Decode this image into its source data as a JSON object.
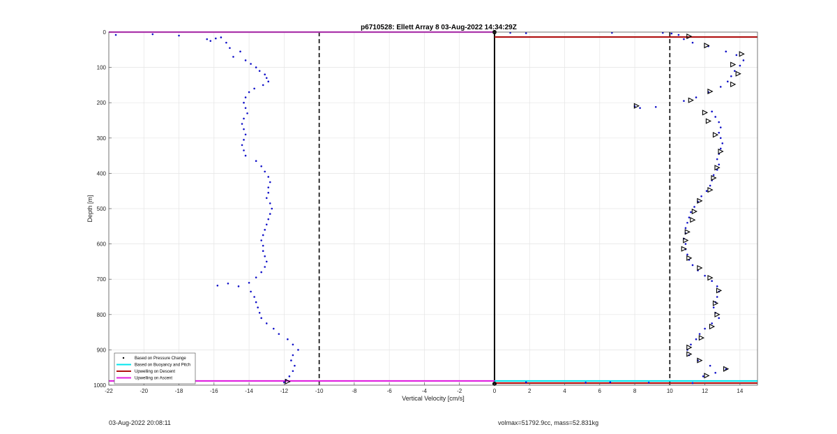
{
  "footer": {
    "left_text": "03-Aug-2022 20:08:11",
    "right_text": "volmax=51792.9cc, mass=52.831kg"
  },
  "chart_data": {
    "type": "scatter",
    "title": "p6710528: Ellett Array 8 03-Aug-2022 14:34:29Z",
    "xlabel": "Vertical Velocity [cm/s]",
    "ylabel": "Depth [m]",
    "xlim": [
      -22,
      15
    ],
    "ylim": [
      0,
      1000
    ],
    "y_reversed": true,
    "grid": true,
    "x_ticks": [
      -22,
      -20,
      -18,
      -16,
      -14,
      -12,
      -10,
      -8,
      -6,
      -4,
      -2,
      0,
      2,
      4,
      6,
      8,
      10,
      12,
      14
    ],
    "y_ticks": [
      0,
      100,
      200,
      300,
      400,
      500,
      600,
      700,
      800,
      900,
      1000
    ],
    "legend": {
      "placement": "bottom-left",
      "entries": [
        {
          "label": "Based on Pressure Change",
          "color": "#000000",
          "style": "dot"
        },
        {
          "label": "Based on Buoyancy and Pitch",
          "color": "#00e5ee",
          "style": "line"
        },
        {
          "label": "Upwelling on Descent",
          "color": "#b01010",
          "style": "line"
        },
        {
          "label": "Upwelling on Ascent",
          "color": "#e020e0",
          "style": "line"
        }
      ]
    },
    "reference_lines": [
      {
        "x": -10,
        "style": "dashed",
        "color": "#000000"
      },
      {
        "x": 0,
        "style": "solid",
        "color": "#000000"
      },
      {
        "x": 10,
        "style": "dashed",
        "color": "#000000"
      }
    ],
    "series": [
      {
        "label": "Based on Pressure Change",
        "marker": "dot",
        "color": "#1010c8",
        "points": [
          [
            -21.6,
            8
          ],
          [
            -19.5,
            6
          ],
          [
            -18,
            10
          ],
          [
            -16.4,
            20
          ],
          [
            -16.2,
            25
          ],
          [
            -15.9,
            18
          ],
          [
            -15.6,
            15
          ],
          [
            -15.3,
            30
          ],
          [
            -15.1,
            45
          ],
          [
            -14.5,
            55
          ],
          [
            -14.9,
            70
          ],
          [
            -14.2,
            80
          ],
          [
            -13.9,
            90
          ],
          [
            -13.6,
            100
          ],
          [
            -13.4,
            110
          ],
          [
            -13.1,
            120
          ],
          [
            -13.0,
            130
          ],
          [
            -12.9,
            140
          ],
          [
            -13.2,
            150
          ],
          [
            -13.7,
            160
          ],
          [
            -14.0,
            170
          ],
          [
            -14.2,
            185
          ],
          [
            -14.3,
            200
          ],
          [
            -14.2,
            215
          ],
          [
            -14.1,
            230
          ],
          [
            -14.3,
            245
          ],
          [
            -14.4,
            260
          ],
          [
            -14.3,
            275
          ],
          [
            -14.2,
            290
          ],
          [
            -14.3,
            305
          ],
          [
            -14.4,
            320
          ],
          [
            -14.3,
            335
          ],
          [
            -14.2,
            350
          ],
          [
            -13.6,
            365
          ],
          [
            -13.3,
            380
          ],
          [
            -13.1,
            395
          ],
          [
            -12.9,
            410
          ],
          [
            -12.8,
            425
          ],
          [
            -12.9,
            440
          ],
          [
            -12.9,
            455
          ],
          [
            -13.0,
            470
          ],
          [
            -12.8,
            485
          ],
          [
            -12.7,
            500
          ],
          [
            -12.8,
            515
          ],
          [
            -12.9,
            530
          ],
          [
            -13.0,
            545
          ],
          [
            -13.1,
            560
          ],
          [
            -13.2,
            575
          ],
          [
            -13.3,
            590
          ],
          [
            -13.2,
            605
          ],
          [
            -13.2,
            620
          ],
          [
            -13.1,
            635
          ],
          [
            -13.0,
            650
          ],
          [
            -13.1,
            665
          ],
          [
            -13.3,
            680
          ],
          [
            -13.6,
            695
          ],
          [
            -14.0,
            710
          ],
          [
            -14.6,
            720
          ],
          [
            -13.9,
            735
          ],
          [
            -13.7,
            750
          ],
          [
            -13.6,
            765
          ],
          [
            -13.5,
            780
          ],
          [
            -13.4,
            795
          ],
          [
            -13.3,
            810
          ],
          [
            -13.0,
            825
          ],
          [
            -12.6,
            840
          ],
          [
            -12.3,
            855
          ],
          [
            -11.8,
            870
          ],
          [
            -11.5,
            885
          ],
          [
            -11.2,
            900
          ],
          [
            -11.5,
            915
          ],
          [
            -11.6,
            930
          ],
          [
            -11.4,
            945
          ],
          [
            -11.5,
            960
          ],
          [
            -11.7,
            975
          ],
          [
            -11.9,
            985
          ],
          [
            -12.0,
            992
          ],
          [
            -15.8,
            718
          ],
          [
            -15.2,
            712
          ],
          [
            10.5,
            8
          ],
          [
            10.8,
            20
          ],
          [
            11.3,
            30
          ],
          [
            12.2,
            40
          ],
          [
            13.2,
            55
          ],
          [
            13.8,
            65
          ],
          [
            14.2,
            80
          ],
          [
            14.0,
            95
          ],
          [
            13.7,
            110
          ],
          [
            13.5,
            125
          ],
          [
            13.3,
            140
          ],
          [
            12.9,
            155
          ],
          [
            12.2,
            170
          ],
          [
            11.5,
            185
          ],
          [
            10.8,
            195
          ],
          [
            8.0,
            210
          ],
          [
            8.3,
            215
          ],
          [
            9.2,
            212
          ],
          [
            12.4,
            225
          ],
          [
            12.6,
            240
          ],
          [
            12.8,
            255
          ],
          [
            12.9,
            270
          ],
          [
            12.8,
            285
          ],
          [
            12.9,
            300
          ],
          [
            13.0,
            315
          ],
          [
            12.9,
            330
          ],
          [
            12.8,
            345
          ],
          [
            12.7,
            360
          ],
          [
            12.8,
            375
          ],
          [
            12.7,
            390
          ],
          [
            12.5,
            405
          ],
          [
            12.4,
            420
          ],
          [
            12.3,
            435
          ],
          [
            12.1,
            450
          ],
          [
            11.8,
            465
          ],
          [
            11.6,
            480
          ],
          [
            11.4,
            495
          ],
          [
            11.2,
            510
          ],
          [
            11.1,
            525
          ],
          [
            11.0,
            540
          ],
          [
            10.9,
            555
          ],
          [
            10.9,
            570
          ],
          [
            10.8,
            585
          ],
          [
            10.9,
            600
          ],
          [
            10.9,
            615
          ],
          [
            11.0,
            630
          ],
          [
            11.1,
            645
          ],
          [
            11.3,
            660
          ],
          [
            11.6,
            675
          ],
          [
            12.0,
            690
          ],
          [
            12.4,
            705
          ],
          [
            12.7,
            720
          ],
          [
            12.8,
            735
          ],
          [
            12.7,
            750
          ],
          [
            12.6,
            765
          ],
          [
            12.5,
            780
          ],
          [
            12.6,
            795
          ],
          [
            12.8,
            810
          ],
          [
            12.4,
            825
          ],
          [
            12.0,
            840
          ],
          [
            11.7,
            855
          ],
          [
            11.5,
            870
          ],
          [
            11.2,
            885
          ],
          [
            11.0,
            900
          ],
          [
            11.1,
            915
          ],
          [
            11.6,
            930
          ],
          [
            12.3,
            945
          ],
          [
            13.2,
            955
          ],
          [
            12.6,
            965
          ],
          [
            11.9,
            975
          ],
          [
            0.9,
            2
          ],
          [
            1.8,
            3
          ],
          [
            6.7,
            2
          ],
          [
            9.6,
            2
          ],
          [
            10.1,
            4
          ],
          [
            1.8,
            992
          ],
          [
            5.2,
            993
          ],
          [
            6.6,
            992
          ],
          [
            8.8,
            993
          ],
          [
            11.3,
            994
          ]
        ]
      },
      {
        "label": "Based on Buoyancy and Pitch",
        "marker": "triangle",
        "color": "#000000",
        "points": [
          [
            11.1,
            12
          ],
          [
            12.1,
            38
          ],
          [
            14.1,
            62
          ],
          [
            13.6,
            92
          ],
          [
            13.9,
            118
          ],
          [
            13.6,
            148
          ],
          [
            12.3,
            168
          ],
          [
            11.2,
            193
          ],
          [
            8.1,
            209
          ],
          [
            12.0,
            228
          ],
          [
            12.2,
            252
          ],
          [
            12.6,
            291
          ],
          [
            12.9,
            338
          ],
          [
            12.7,
            384
          ],
          [
            12.5,
            413
          ],
          [
            12.3,
            447
          ],
          [
            11.7,
            478
          ],
          [
            11.4,
            508
          ],
          [
            11.3,
            532
          ],
          [
            11.0,
            566
          ],
          [
            10.9,
            590
          ],
          [
            10.8,
            614
          ],
          [
            11.1,
            640
          ],
          [
            11.7,
            668
          ],
          [
            12.3,
            696
          ],
          [
            12.8,
            732
          ],
          [
            12.6,
            768
          ],
          [
            12.7,
            800
          ],
          [
            12.4,
            834
          ],
          [
            11.8,
            866
          ],
          [
            11.1,
            893
          ],
          [
            11.1,
            912
          ],
          [
            11.7,
            930
          ],
          [
            13.2,
            954
          ],
          [
            12.1,
            973
          ],
          [
            -11.8,
            990
          ]
        ]
      }
    ],
    "horizontal_lines": [
      {
        "label": "Upwelling on Ascent",
        "y": 0,
        "x_range": [
          -22,
          0
        ],
        "color": "#e020e0"
      },
      {
        "label": "Upwelling on Descent",
        "y": 14,
        "x_range": [
          0,
          15
        ],
        "color": "#b01010"
      },
      {
        "label": "Upwelling on Ascent",
        "y": 988,
        "x_range": [
          -22,
          0
        ],
        "color": "#e020e0"
      },
      {
        "label": "Based on Buoyancy and Pitch",
        "y": 988,
        "x_range": [
          0,
          15
        ],
        "color": "#00e5ee"
      },
      {
        "label": "Upwelling on Descent",
        "y": 994,
        "x_range": [
          0,
          15
        ],
        "color": "#b01010"
      }
    ]
  }
}
